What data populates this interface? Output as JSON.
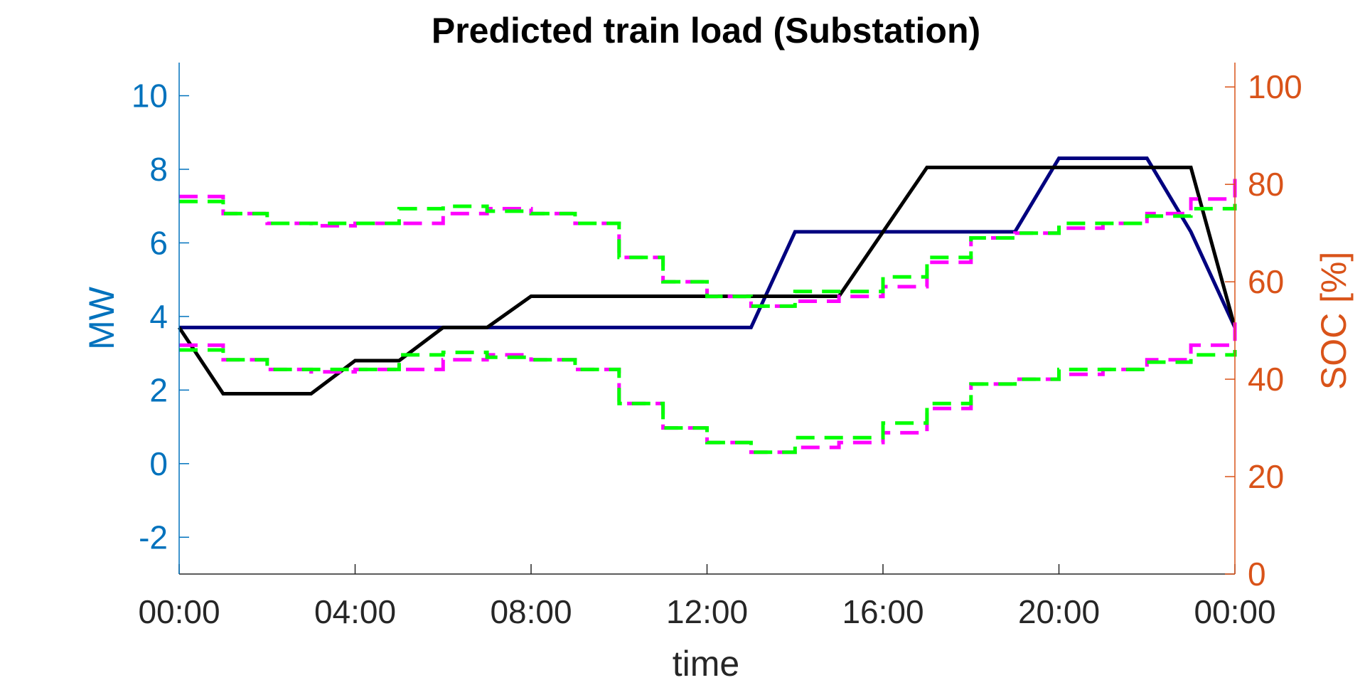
{
  "chart_data": {
    "type": "line",
    "title": "Predicted train load (Substation)",
    "xlabel": "time",
    "ylabel_left": "MW",
    "ylabel_right": "SOC [%]",
    "x_ticks": [
      "00:00",
      "04:00",
      "08:00",
      "12:00",
      "16:00",
      "20:00",
      "00:00"
    ],
    "xlim_hours": [
      0,
      24
    ],
    "ylim_left": [
      -3,
      10.9
    ],
    "yticks_left": [
      "-2",
      "0",
      "2",
      "4",
      "6",
      "8",
      "10"
    ],
    "ylim_right": [
      0,
      105
    ],
    "yticks_right": [
      "0",
      "20",
      "40",
      "60",
      "80",
      "100"
    ],
    "grid": false,
    "colors": {
      "left_axis": "#0072BD",
      "right_axis": "#D95319",
      "navy_line": "#00007F",
      "black_line": "#000000",
      "magenta_dash": "#FF00FF",
      "green_dash": "#00FF00"
    },
    "series": [
      {
        "axis": "left",
        "style": "solid",
        "color": "#00007F",
        "x": [
          0,
          13,
          14,
          19,
          20,
          22,
          23,
          24
        ],
        "y": [
          3.7,
          3.7,
          6.3,
          6.3,
          8.3,
          8.3,
          6.3,
          3.7
        ]
      },
      {
        "axis": "left",
        "style": "solid",
        "color": "#000000",
        "x": [
          0,
          1,
          3,
          4,
          5,
          6,
          7,
          8,
          15,
          17,
          23,
          24
        ],
        "y": [
          3.7,
          1.9,
          1.9,
          2.8,
          2.8,
          3.7,
          3.7,
          4.55,
          4.55,
          8.05,
          8.05,
          3.7
        ]
      },
      {
        "axis": "right",
        "style": "dash",
        "color": "#FF00FF",
        "x": [
          0,
          1,
          2,
          3,
          4,
          5,
          6,
          7,
          8,
          9,
          10,
          11,
          12,
          13,
          14,
          15,
          16,
          17,
          18,
          19,
          20,
          21,
          22,
          23,
          24
        ],
        "y": [
          77.5,
          74,
          72,
          71.5,
          72,
          72,
          74,
          75,
          74,
          72,
          65,
          60,
          57,
          55,
          56,
          57,
          59,
          64,
          69,
          70,
          71,
          72,
          74,
          77,
          83
        ]
      },
      {
        "axis": "right",
        "style": "dash",
        "color": "#00FF00",
        "x": [
          0,
          1,
          2,
          3,
          4,
          5,
          6,
          7,
          8,
          9,
          10,
          11,
          12,
          13,
          14,
          15,
          16,
          17,
          18,
          19,
          20,
          21,
          22,
          23,
          24
        ],
        "y": [
          76.5,
          74,
          72,
          72,
          72,
          75,
          75.5,
          74.5,
          74,
          72,
          65,
          60,
          57,
          55,
          58,
          58,
          61,
          65,
          69,
          70,
          72,
          72,
          73.5,
          75,
          76
        ]
      },
      {
        "axis": "right",
        "style": "dash",
        "color": "#FF00FF",
        "x": [
          0,
          1,
          2,
          3,
          4,
          5,
          6,
          7,
          8,
          9,
          10,
          11,
          12,
          13,
          14,
          15,
          16,
          17,
          18,
          19,
          20,
          21,
          22,
          23,
          24
        ],
        "y": [
          47,
          44,
          42,
          41.5,
          42,
          42,
          44,
          45,
          44,
          42,
          35,
          30,
          27,
          25,
          26,
          27,
          29,
          34,
          39,
          40,
          41,
          42,
          44,
          47,
          53
        ]
      },
      {
        "axis": "right",
        "style": "dash",
        "color": "#00FF00",
        "x": [
          0,
          1,
          2,
          3,
          4,
          5,
          6,
          7,
          8,
          9,
          10,
          11,
          12,
          13,
          14,
          15,
          16,
          17,
          18,
          19,
          20,
          21,
          22,
          23,
          24
        ],
        "y": [
          46,
          44,
          42,
          42,
          42,
          45,
          45.5,
          44.5,
          44,
          42,
          35,
          30,
          27,
          25,
          28,
          28,
          31,
          35,
          39,
          40,
          42,
          42,
          43.5,
          45,
          46
        ]
      }
    ]
  }
}
